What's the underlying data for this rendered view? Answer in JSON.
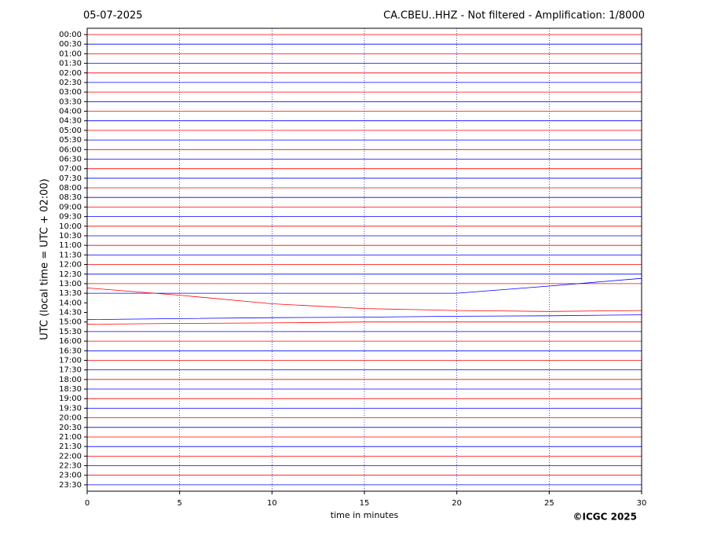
{
  "chart_data": {
    "type": "helicorder",
    "title": "CA.CBEU..HHZ - Not filtered - Amplification: 1/8000",
    "date": "05-07-2025",
    "y_label": "UTC (local time = UTC + 02:00)",
    "x_label": "time in minutes",
    "copyright": "©ICGC 2025",
    "xlim": [
      0,
      30
    ],
    "xticks": [
      0,
      5,
      10,
      15,
      20,
      25,
      30
    ],
    "grid": true,
    "categories": [
      "00:00",
      "00:30",
      "01:00",
      "01:30",
      "02:00",
      "02:30",
      "03:00",
      "03:30",
      "04:00",
      "04:30",
      "05:00",
      "05:30",
      "06:00",
      "06:30",
      "07:00",
      "07:30",
      "08:00",
      "08:30",
      "09:00",
      "09:30",
      "10:00",
      "10:30",
      "11:00",
      "11:30",
      "12:00",
      "12:30",
      "13:00",
      "13:30",
      "14:00",
      "14:30",
      "15:00",
      "15:30",
      "16:00",
      "16:30",
      "17:00",
      "17:30",
      "18:00",
      "18:30",
      "19:00",
      "19:30",
      "20:00",
      "20:30",
      "21:00",
      "21:30",
      "22:00",
      "22:30",
      "23:00",
      "23:30"
    ],
    "x": [
      0,
      5,
      10,
      15,
      20,
      25,
      30
    ],
    "series": [
      {
        "color": "#ff0000",
        "values": [
          0,
          0,
          0,
          0,
          0,
          0,
          0
        ]
      },
      {
        "color": "#0000ff",
        "values": [
          0,
          0,
          0,
          0,
          0,
          0,
          0
        ]
      },
      {
        "color": "#ff0000",
        "values": [
          0,
          0,
          0,
          0,
          0,
          0,
          0
        ]
      },
      {
        "color": "#0000ff",
        "values": [
          0,
          0,
          0,
          0,
          0,
          0,
          0
        ]
      },
      {
        "color": "#ff0000",
        "values": [
          0,
          0,
          0,
          0,
          0,
          0,
          0
        ]
      },
      {
        "color": "#0000ff",
        "values": [
          0,
          0,
          0,
          0,
          0,
          0,
          0
        ]
      },
      {
        "color": "#ff0000",
        "values": [
          0,
          0,
          0,
          0,
          0,
          0,
          0
        ]
      },
      {
        "color": "#0000ff",
        "values": [
          0,
          0,
          0,
          0,
          0,
          0,
          0
        ]
      },
      {
        "color": "#ff0000",
        "values": [
          0,
          0,
          0,
          0,
          0,
          0,
          0
        ]
      },
      {
        "color": "#0000ff",
        "values": [
          0,
          0,
          0,
          0,
          0,
          0,
          0
        ]
      },
      {
        "color": "#ff0000",
        "values": [
          0,
          0,
          0,
          0,
          0,
          0,
          0
        ]
      },
      {
        "color": "#0000ff",
        "values": [
          0,
          0,
          0,
          0,
          0,
          0,
          0
        ]
      },
      {
        "color": "#ff0000",
        "values": [
          0,
          0,
          0,
          0,
          0,
          0,
          0
        ]
      },
      {
        "color": "#0000ff",
        "values": [
          0,
          0,
          0,
          0,
          0,
          0,
          0
        ]
      },
      {
        "color": "#ff0000",
        "values": [
          0,
          0,
          0,
          0,
          0,
          0,
          0
        ]
      },
      {
        "color": "#0000ff",
        "values": [
          0,
          0,
          0,
          0,
          0,
          0,
          0
        ]
      },
      {
        "color": "#ff0000",
        "values": [
          0,
          0,
          0,
          0,
          0,
          0,
          0
        ]
      },
      {
        "color": "#0000ff",
        "values": [
          0,
          0,
          0,
          0,
          0,
          0,
          0
        ]
      },
      {
        "color": "#ff0000",
        "values": [
          0,
          0,
          0,
          0,
          0,
          0,
          0
        ]
      },
      {
        "color": "#0000ff",
        "values": [
          0,
          0,
          0,
          0,
          0,
          0,
          0
        ]
      },
      {
        "color": "#ff0000",
        "values": [
          0,
          0,
          0,
          0,
          0,
          0,
          0
        ]
      },
      {
        "color": "#0000ff",
        "values": [
          0,
          0,
          0,
          0,
          0,
          0,
          0
        ]
      },
      {
        "color": "#ff0000",
        "values": [
          0,
          0,
          0,
          0,
          0,
          0,
          0
        ]
      },
      {
        "color": "#0000ff",
        "values": [
          0,
          0,
          0,
          0,
          0,
          0,
          0
        ]
      },
      {
        "color": "#ff0000",
        "values": [
          0,
          0,
          0,
          0,
          0,
          0,
          0
        ]
      },
      {
        "color": "#0000ff",
        "values": [
          0,
          0,
          0,
          0,
          0,
          0,
          0
        ]
      },
      {
        "color": "#ff0000",
        "values": [
          0,
          0,
          0,
          0,
          0,
          0,
          0
        ]
      },
      {
        "color": "#0000ff",
        "values": [
          0,
          0,
          0,
          0,
          0,
          0.75,
          1.55
        ]
      },
      {
        "color": "#ff0000",
        "values": [
          1.55,
          0.8,
          -0.1,
          -0.6,
          -0.8,
          -0.9,
          -0.8
        ]
      },
      {
        "color": "#0000ff",
        "values": [
          -0.75,
          -0.65,
          -0.55,
          -0.5,
          -0.4,
          -0.35,
          -0.25
        ]
      },
      {
        "color": "#ff0000",
        "values": [
          -0.25,
          -0.15,
          -0.1,
          0,
          0,
          0,
          0
        ]
      },
      {
        "color": "#0000ff",
        "values": [
          0,
          0,
          0,
          0,
          0,
          0,
          0
        ]
      },
      {
        "color": "#ff0000",
        "values": [
          0,
          0,
          0,
          0,
          0,
          0,
          0
        ]
      },
      {
        "color": "#0000ff",
        "values": [
          0,
          0,
          0,
          0,
          0,
          0,
          0
        ]
      },
      {
        "color": "#ff0000",
        "values": [
          0,
          0,
          0,
          0,
          0,
          0,
          0
        ]
      },
      {
        "color": "#0000ff",
        "values": [
          0,
          0,
          0,
          0,
          0,
          0,
          0
        ]
      },
      {
        "color": "#ff0000",
        "values": [
          0,
          0,
          0,
          0,
          0,
          0,
          0
        ]
      },
      {
        "color": "#0000ff",
        "values": [
          0,
          0,
          0,
          0,
          0,
          0,
          0
        ]
      },
      {
        "color": "#ff0000",
        "values": [
          0,
          0,
          0,
          0,
          0,
          0,
          0
        ]
      },
      {
        "color": "#0000ff",
        "values": [
          0,
          0,
          0,
          0,
          0,
          0,
          0
        ]
      },
      {
        "color": "#ff0000",
        "values": [
          0,
          0,
          0,
          0,
          0,
          0,
          0
        ]
      },
      {
        "color": "#0000ff",
        "values": [
          0,
          0,
          0,
          0,
          0,
          0,
          0
        ]
      },
      {
        "color": "#ff0000",
        "values": [
          0,
          0,
          0,
          0,
          0,
          0,
          0
        ]
      },
      {
        "color": "#0000ff",
        "values": [
          0,
          0,
          0,
          0,
          0,
          0,
          0
        ]
      },
      {
        "color": "#ff0000",
        "values": [
          0,
          0,
          0,
          0,
          0,
          0,
          0
        ]
      },
      {
        "color": "#0000ff",
        "values": [
          0,
          0,
          0,
          0,
          0,
          0,
          0
        ]
      },
      {
        "color": "#ff0000",
        "values": [
          0,
          0,
          0,
          0,
          0,
          0,
          0
        ]
      },
      {
        "color": "#0000ff",
        "values": [
          0,
          0,
          0,
          0,
          0,
          0,
          0
        ]
      }
    ]
  }
}
